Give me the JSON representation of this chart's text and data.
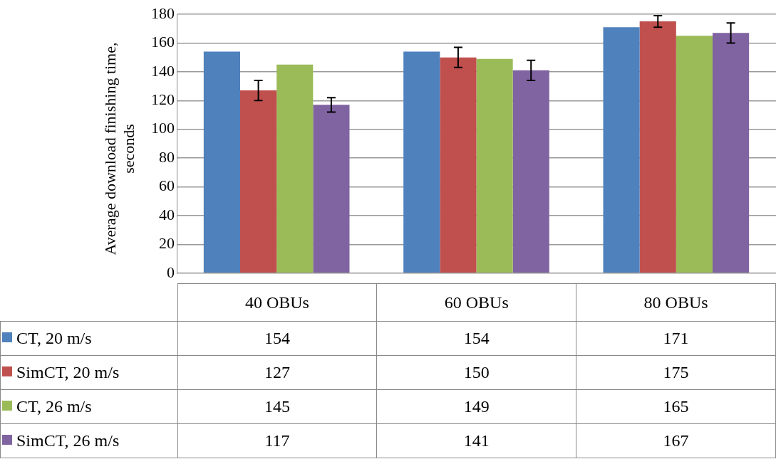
{
  "chart_data": {
    "type": "bar",
    "ylabel": "Average download finishing time, seconds",
    "categories": [
      "40 OBUs",
      "60 OBUs",
      "80 OBUs"
    ],
    "series": [
      {
        "name": "CT, 20 m/s",
        "color": "#4f81bd",
        "values": [
          154,
          154,
          171
        ]
      },
      {
        "name": "SimCT, 20 m/s",
        "color": "#c0504d",
        "values": [
          127,
          150,
          175
        ],
        "errors": [
          7,
          7,
          4
        ]
      },
      {
        "name": "CT, 26 m/s",
        "color": "#9bbb59",
        "values": [
          145,
          149,
          165
        ]
      },
      {
        "name": "SimCT, 26 m/s",
        "color": "#8064a2",
        "values": [
          117,
          141,
          167
        ],
        "errors": [
          5,
          7,
          7
        ]
      }
    ],
    "ylim": [
      0,
      180
    ],
    "yticks": [
      0,
      20,
      40,
      60,
      80,
      100,
      120,
      140,
      160,
      180
    ],
    "grid": "y",
    "legend": "bottom",
    "data_labels": true
  }
}
